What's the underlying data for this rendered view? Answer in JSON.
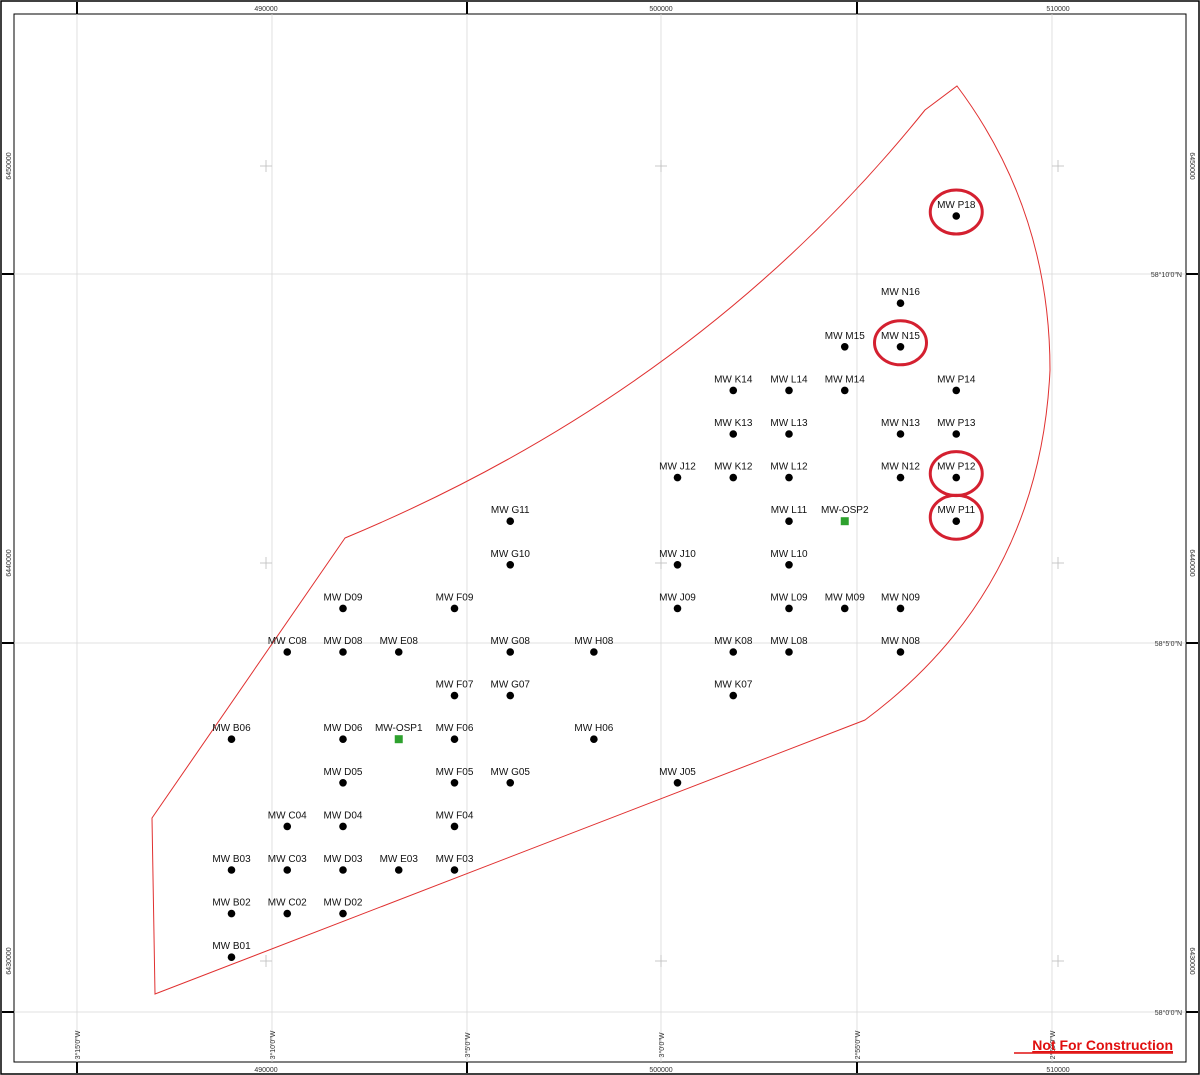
{
  "map": {
    "top_easting_labels": [
      "490000",
      "500000",
      "510000"
    ],
    "bottom_easting_labels": [
      "490000",
      "500000",
      "510000"
    ],
    "left_northing_labels": [
      "6450000",
      "6440000",
      "6430000"
    ],
    "right_northing_labels": [
      "6450000",
      "6440000",
      "6430000"
    ],
    "right_latitude_labels": [
      "58°10'0\"N",
      "58°5'0\"N",
      "58°0'0\"N"
    ],
    "bottom_longitude_labels": [
      "3°15'0\"W",
      "3°10'0\"W",
      "3°5'0\"W",
      "3°0'0\"W",
      "2°55'0\"W",
      "2°50'0\"W"
    ],
    "boundary_color": "#e03030",
    "highlight_color": "#d42030",
    "osp_color": "#2ea12e",
    "turbine_color": "#000000",
    "highlighted_turbines": [
      "MW P18",
      "MW N15",
      "MW P12",
      "MW P11"
    ],
    "note": "Not For Construction",
    "turbines": [
      {
        "label": "MW P18",
        "kind": "turbine",
        "col": 15,
        "row": 0
      },
      {
        "label": "MW N16",
        "kind": "turbine",
        "col": 14,
        "row": 2
      },
      {
        "label": "MW M15",
        "kind": "turbine",
        "col": 13,
        "row": 3
      },
      {
        "label": "MW N15",
        "kind": "turbine",
        "col": 14,
        "row": 3
      },
      {
        "label": "MW K14",
        "kind": "turbine",
        "col": 11,
        "row": 4
      },
      {
        "label": "MW L14",
        "kind": "turbine",
        "col": 12,
        "row": 4
      },
      {
        "label": "MW M14",
        "kind": "turbine",
        "col": 13,
        "row": 4
      },
      {
        "label": "MW P14",
        "kind": "turbine",
        "col": 15,
        "row": 4
      },
      {
        "label": "MW K13",
        "kind": "turbine",
        "col": 11,
        "row": 5
      },
      {
        "label": "MW L13",
        "kind": "turbine",
        "col": 12,
        "row": 5
      },
      {
        "label": "MW N13",
        "kind": "turbine",
        "col": 14,
        "row": 5
      },
      {
        "label": "MW P13",
        "kind": "turbine",
        "col": 15,
        "row": 5
      },
      {
        "label": "MW J12",
        "kind": "turbine",
        "col": 10,
        "row": 6
      },
      {
        "label": "MW K12",
        "kind": "turbine",
        "col": 11,
        "row": 6
      },
      {
        "label": "MW L12",
        "kind": "turbine",
        "col": 12,
        "row": 6
      },
      {
        "label": "MW N12",
        "kind": "turbine",
        "col": 14,
        "row": 6
      },
      {
        "label": "MW P12",
        "kind": "turbine",
        "col": 15,
        "row": 6
      },
      {
        "label": "MW G11",
        "kind": "turbine",
        "col": 7,
        "row": 7
      },
      {
        "label": "MW L11",
        "kind": "turbine",
        "col": 12,
        "row": 7
      },
      {
        "label": "MW-OSP2",
        "kind": "osp",
        "col": 13,
        "row": 7
      },
      {
        "label": "MW P11",
        "kind": "turbine",
        "col": 15,
        "row": 7
      },
      {
        "label": "MW G10",
        "kind": "turbine",
        "col": 7,
        "row": 8
      },
      {
        "label": "MW J10",
        "kind": "turbine",
        "col": 10,
        "row": 8
      },
      {
        "label": "MW L10",
        "kind": "turbine",
        "col": 12,
        "row": 8
      },
      {
        "label": "MW D09",
        "kind": "turbine",
        "col": 4,
        "row": 9
      },
      {
        "label": "MW F09",
        "kind": "turbine",
        "col": 6,
        "row": 9
      },
      {
        "label": "MW J09",
        "kind": "turbine",
        "col": 10,
        "row": 9
      },
      {
        "label": "MW L09",
        "kind": "turbine",
        "col": 12,
        "row": 9
      },
      {
        "label": "MW M09",
        "kind": "turbine",
        "col": 13,
        "row": 9
      },
      {
        "label": "MW N09",
        "kind": "turbine",
        "col": 14,
        "row": 9
      },
      {
        "label": "MW C08",
        "kind": "turbine",
        "col": 3,
        "row": 10
      },
      {
        "label": "MW D08",
        "kind": "turbine",
        "col": 4,
        "row": 10
      },
      {
        "label": "MW E08",
        "kind": "turbine",
        "col": 5,
        "row": 10
      },
      {
        "label": "MW G08",
        "kind": "turbine",
        "col": 7,
        "row": 10
      },
      {
        "label": "MW H08",
        "kind": "turbine",
        "col": 8.5,
        "row": 10
      },
      {
        "label": "MW K08",
        "kind": "turbine",
        "col": 11,
        "row": 10
      },
      {
        "label": "MW L08",
        "kind": "turbine",
        "col": 12,
        "row": 10
      },
      {
        "label": "MW N08",
        "kind": "turbine",
        "col": 14,
        "row": 10
      },
      {
        "label": "MW F07",
        "kind": "turbine",
        "col": 6,
        "row": 11
      },
      {
        "label": "MW G07",
        "kind": "turbine",
        "col": 7,
        "row": 11
      },
      {
        "label": "MW K07",
        "kind": "turbine",
        "col": 11,
        "row": 11
      },
      {
        "label": "MW B06",
        "kind": "turbine",
        "col": 2,
        "row": 12
      },
      {
        "label": "MW D06",
        "kind": "turbine",
        "col": 4,
        "row": 12
      },
      {
        "label": "MW-OSP1",
        "kind": "osp",
        "col": 5,
        "row": 12
      },
      {
        "label": "MW F06",
        "kind": "turbine",
        "col": 6,
        "row": 12
      },
      {
        "label": "MW H06",
        "kind": "turbine",
        "col": 8.5,
        "row": 12
      },
      {
        "label": "MW D05",
        "kind": "turbine",
        "col": 4,
        "row": 13
      },
      {
        "label": "MW F05",
        "kind": "turbine",
        "col": 6,
        "row": 13
      },
      {
        "label": "MW G05",
        "kind": "turbine",
        "col": 7,
        "row": 13
      },
      {
        "label": "MW J05",
        "kind": "turbine",
        "col": 10,
        "row": 13
      },
      {
        "label": "MW C04",
        "kind": "turbine",
        "col": 3,
        "row": 14
      },
      {
        "label": "MW D04",
        "kind": "turbine",
        "col": 4,
        "row": 14
      },
      {
        "label": "MW F04",
        "kind": "turbine",
        "col": 6,
        "row": 14
      },
      {
        "label": "MW B03",
        "kind": "turbine",
        "col": 2,
        "row": 15
      },
      {
        "label": "MW C03",
        "kind": "turbine",
        "col": 3,
        "row": 15
      },
      {
        "label": "MW D03",
        "kind": "turbine",
        "col": 4,
        "row": 15
      },
      {
        "label": "MW E03",
        "kind": "turbine",
        "col": 5,
        "row": 15
      },
      {
        "label": "MW F03",
        "kind": "turbine",
        "col": 6,
        "row": 15
      },
      {
        "label": "MW B02",
        "kind": "turbine",
        "col": 2,
        "row": 16
      },
      {
        "label": "MW C02",
        "kind": "turbine",
        "col": 3,
        "row": 16
      },
      {
        "label": "MW D02",
        "kind": "turbine",
        "col": 4,
        "row": 16
      },
      {
        "label": "MW B01",
        "kind": "turbine",
        "col": 2,
        "row": 17
      }
    ]
  }
}
